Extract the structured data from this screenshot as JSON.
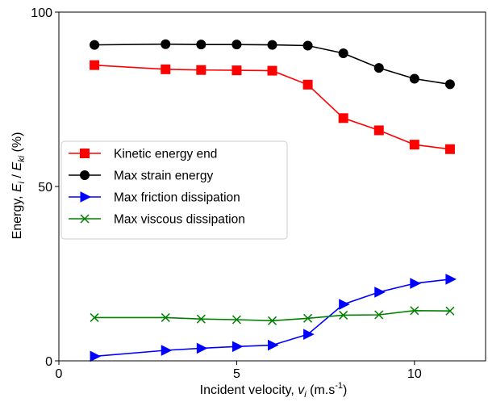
{
  "chart_data": {
    "type": "line",
    "xlabel_parts": {
      "main": "Incident velocity, ",
      "var": "v",
      "sub": "i",
      "units": " (m.s",
      "sup": "-1",
      "close": ")"
    },
    "ylabel_parts": {
      "main": "Energy, ",
      "var1": "E",
      "sub1": "i",
      "slash": " / ",
      "var2": "E",
      "sub2": "ki",
      "units": " (%)"
    },
    "xlim": [
      0,
      12.0
    ],
    "ylim": [
      0,
      100
    ],
    "xticks": [
      0,
      5,
      10
    ],
    "yticks": [
      0,
      50,
      100
    ],
    "grid": false,
    "legend_position": "center-left",
    "series": [
      {
        "name": "Kinetic energy end",
        "color": "#ff0000",
        "marker": "square",
        "x": [
          1,
          3,
          4,
          5,
          6,
          7,
          8,
          9,
          10,
          11
        ],
        "y": [
          84.8,
          83.6,
          83.4,
          83.3,
          83.2,
          79.2,
          69.6,
          66.1,
          62.0,
          60.7
        ]
      },
      {
        "name": "Max strain energy",
        "color": "#000000",
        "marker": "circle",
        "x": [
          1,
          3,
          4,
          5,
          6,
          7,
          8,
          9,
          10,
          11
        ],
        "y": [
          90.6,
          90.8,
          90.7,
          90.7,
          90.6,
          90.4,
          88.2,
          84.0,
          80.9,
          79.3
        ]
      },
      {
        "name": "Max friction dissipation",
        "color": "#0000ff",
        "marker": "triangle-right",
        "x": [
          1,
          3,
          4,
          5,
          6,
          7,
          8,
          9,
          10,
          11
        ],
        "y": [
          1.3,
          3.0,
          3.6,
          4.1,
          4.5,
          7.6,
          16.2,
          19.7,
          22.2,
          23.4
        ]
      },
      {
        "name": "Max viscous dissipation",
        "color": "#008000",
        "marker": "x",
        "x": [
          1,
          3,
          4,
          5,
          6,
          7,
          8,
          9,
          10,
          11
        ],
        "y": [
          12.4,
          12.4,
          12.0,
          11.8,
          11.5,
          12.2,
          13.1,
          13.2,
          14.4,
          14.3
        ]
      }
    ]
  }
}
